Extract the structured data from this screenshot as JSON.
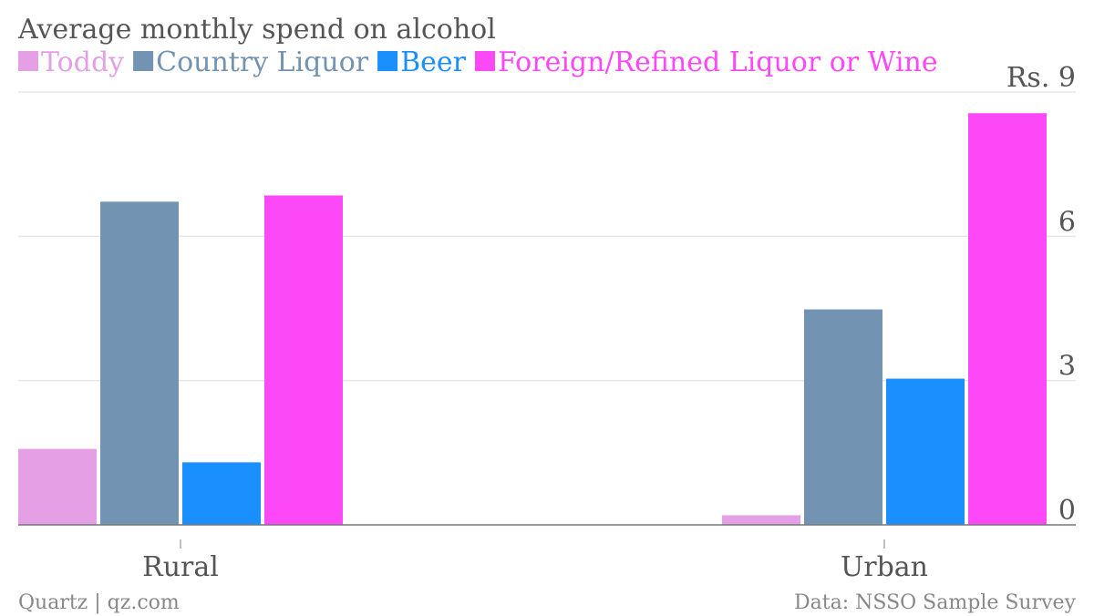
{
  "chart_data": {
    "type": "bar",
    "title": "Average monthly spend on alcohol",
    "categories": [
      "Rural",
      "Urban"
    ],
    "series": [
      {
        "name": "Toddy",
        "color": "#e59fe4",
        "values": [
          1.58,
          0.2
        ]
      },
      {
        "name": "Country Liquor",
        "color": "#7393b3",
        "values": [
          6.72,
          4.48
        ]
      },
      {
        "name": "Beer",
        "color": "#1a8ffe",
        "values": [
          1.3,
          3.04
        ]
      },
      {
        "name": "Foreign/Refined Liquor or Wine",
        "color": "#fd48f7",
        "values": [
          6.85,
          8.56
        ]
      }
    ],
    "ylim": [
      0,
      9
    ],
    "yticks": [
      {
        "value": 9,
        "label": "Rs. 9"
      },
      {
        "value": 6,
        "label": "6"
      },
      {
        "value": 3,
        "label": "3"
      },
      {
        "value": 0,
        "label": "0"
      }
    ],
    "grid": true,
    "legend_position": "top-left",
    "y_axis_side": "right"
  },
  "footer": {
    "source_left": "Quartz | qz.com",
    "source_right": "Data: NSSO Sample Survey"
  }
}
